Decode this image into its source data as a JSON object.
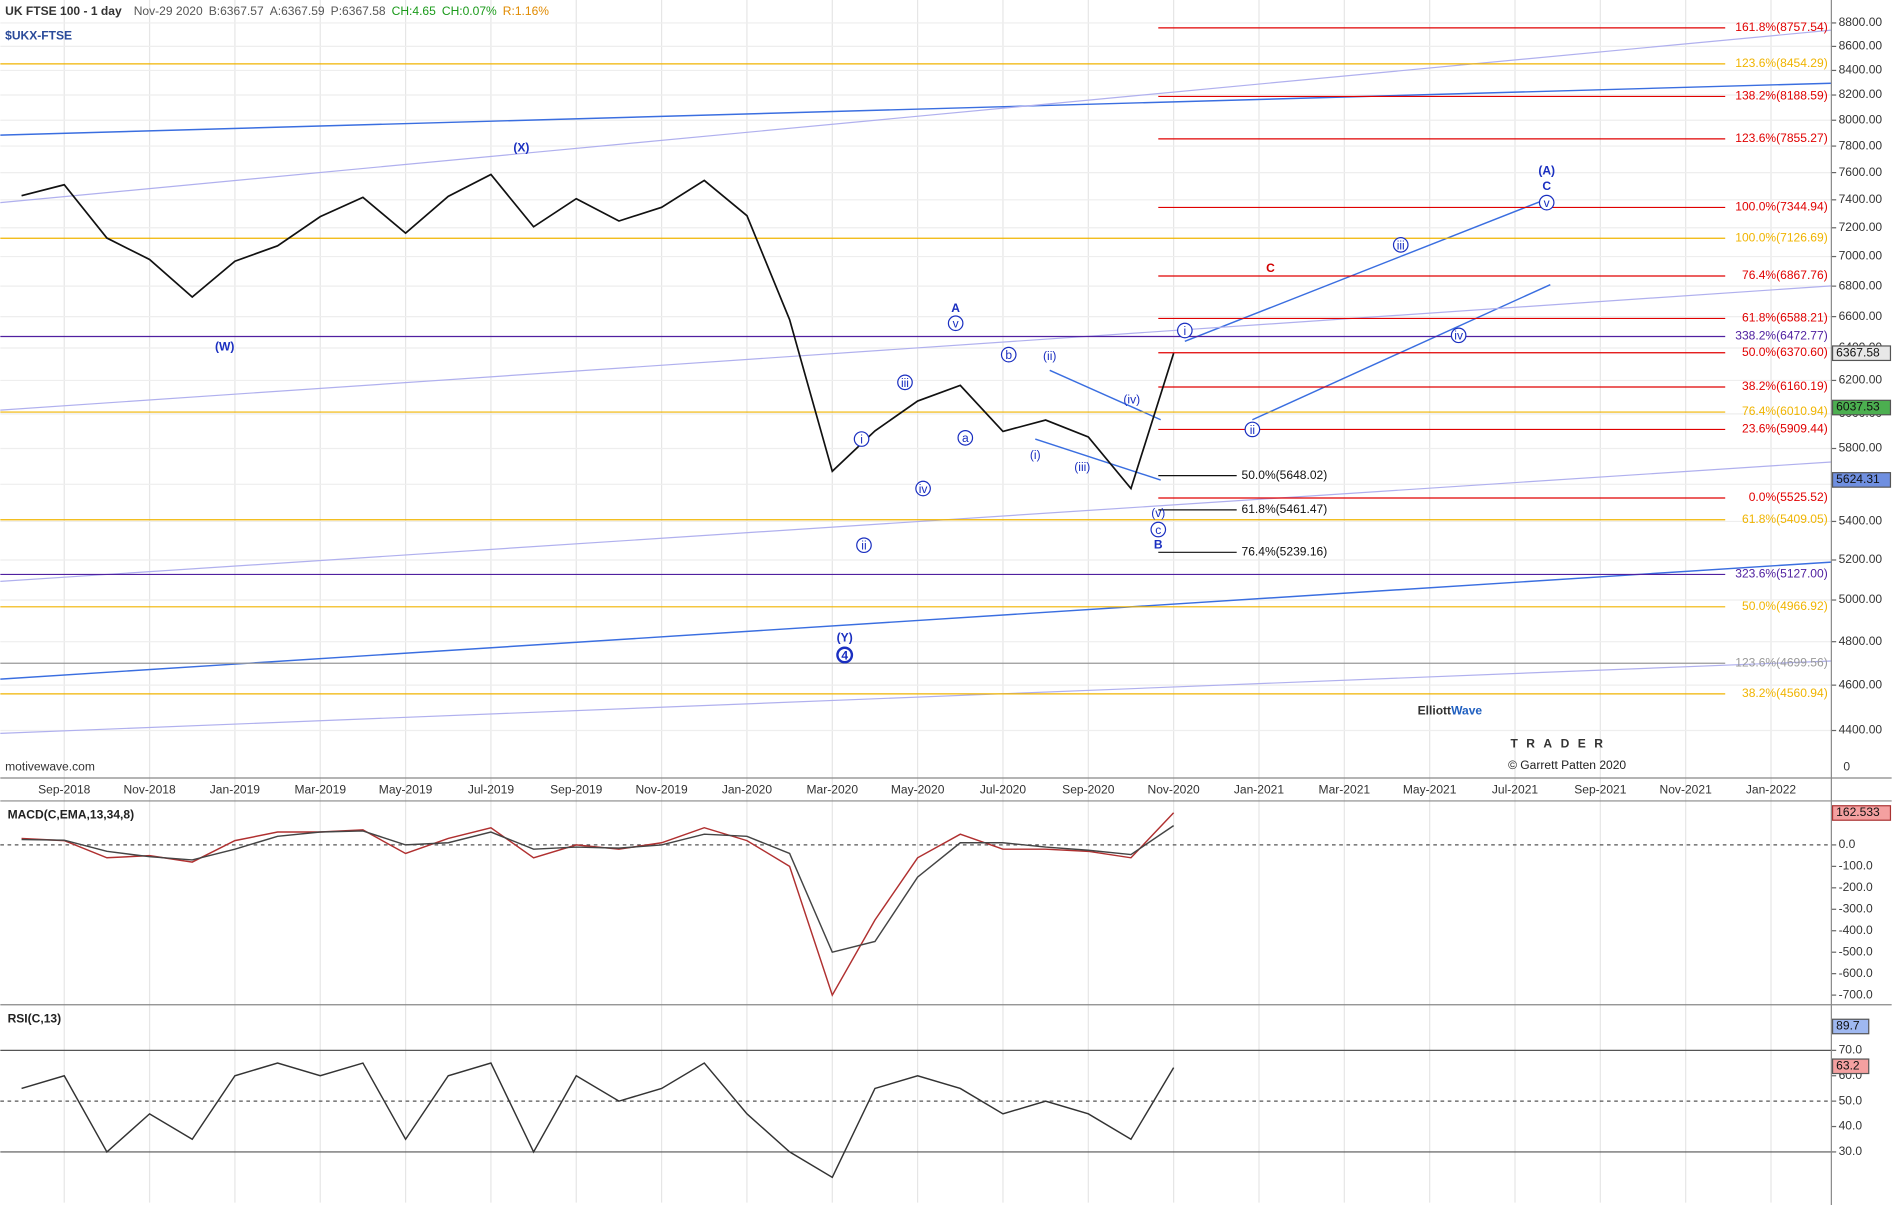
{
  "header": {
    "title": "UK FTSE 100 - 1 day",
    "date": "Nov-29 2020",
    "bid": "B:6367.57",
    "ask": "A:6367.59",
    "price": "P:6367.58",
    "change": "CH:4.65",
    "change_pct": "CH:0.07%",
    "range": "R:1.16%",
    "symbol": "$UKX-FTSE"
  },
  "chart_data": [
    {
      "type": "line",
      "color": "#111111",
      "log": true,
      "grid": true,
      "x": [
        "Aug-2018",
        "Sep-2018",
        "Oct-2018",
        "Nov-2018",
        "Dec-2018",
        "Jan-2019",
        "Feb-2019",
        "Mar-2019",
        "Apr-2019",
        "May-2019",
        "Jun-2019",
        "Jul-2019",
        "Aug-2019",
        "Sep-2019",
        "Oct-2019",
        "Nov-2019",
        "Dec-2019",
        "Jan-2020",
        "Feb-2020",
        "Mar-2020",
        "Apr-2020",
        "May-2020",
        "Jun-2020",
        "Jul-2020",
        "Aug-2020",
        "Sep-2020",
        "Oct-2020",
        "Nov-2020"
      ],
      "values": [
        7430,
        7510,
        7128,
        6980,
        6728,
        6968,
        7074,
        7279,
        7418,
        7162,
        7425,
        7586,
        7207,
        7408,
        7248,
        7346,
        7542,
        7286,
        6580,
        5672,
        5901,
        6076,
        6170,
        5898,
        5964,
        5866,
        5577,
        6367
      ],
      "xticks": [
        "Sep-2018",
        "Nov-2018",
        "Jan-2019",
        "Mar-2019",
        "May-2019",
        "Jul-2019",
        "Sep-2019",
        "Nov-2019",
        "Jan-2020",
        "Mar-2020",
        "May-2020",
        "Jul-2020",
        "Sep-2020",
        "Nov-2020",
        "Jan-2021",
        "Mar-2021",
        "May-2021",
        "Jul-2021",
        "Sep-2021",
        "Nov-2021",
        "Jan-2022"
      ],
      "ylim": [
        4200,
        9000
      ],
      "yticks": [
        {
          "value": 4400,
          "label": "4400.00"
        },
        {
          "value": 4600,
          "label": "4600.00"
        },
        {
          "value": 4800,
          "label": "4800.00"
        },
        {
          "value": 5000,
          "label": "5000.00"
        },
        {
          "value": 5200,
          "label": "5200.00"
        },
        {
          "value": 5400,
          "label": "5400.00"
        },
        {
          "value": 5600,
          "label": "5600.00"
        },
        {
          "value": 5800,
          "label": "5800.00"
        },
        {
          "value": 6000,
          "label": "6000.00"
        },
        {
          "value": 6200,
          "label": "6200.00"
        },
        {
          "value": 6400,
          "label": "6400.00"
        },
        {
          "value": 6600,
          "label": "6600.00"
        },
        {
          "value": 6800,
          "label": "6800.00"
        },
        {
          "value": 7000,
          "label": "7000.00"
        },
        {
          "value": 7200,
          "label": "7200.00"
        },
        {
          "value": 7400,
          "label": "7400.00"
        },
        {
          "value": 7600,
          "label": "7600.00"
        },
        {
          "value": 7800,
          "label": "7800.00"
        },
        {
          "value": 8000,
          "label": "8000.00"
        },
        {
          "value": 8200,
          "label": "8200.00"
        },
        {
          "value": 8400,
          "label": "8400.00"
        },
        {
          "value": 8600,
          "label": "8600.00"
        },
        {
          "value": 8800,
          "label": "8800.00"
        }
      ],
      "axis_extra": "0",
      "price_tags": [
        {
          "value": 6367.58,
          "label": "6367.58",
          "color": "#e8e8e8"
        },
        {
          "value": 6037.53,
          "label": "6037.53",
          "color": "#4caf50"
        },
        {
          "value": 5624.31,
          "label": "5624.31",
          "color": "#6f8fe0"
        }
      ],
      "projection_levels": {
        "color": "#e00000",
        "levels": [
          {
            "value": 8757.54,
            "label": "161.8%(8757.54)"
          },
          {
            "value": 8188.59,
            "label": "138.2%(8188.59)"
          },
          {
            "value": 7855.27,
            "label": "123.6%(7855.27)"
          },
          {
            "value": 7344.94,
            "label": "100.0%(7344.94)"
          },
          {
            "value": 6867.76,
            "label": "76.4%(6867.76)"
          },
          {
            "value": 6588.21,
            "label": "61.8%(6588.21)"
          },
          {
            "value": 6370.6,
            "label": "50.0%(6370.60)"
          },
          {
            "value": 6160.19,
            "label": "38.2%(6160.19)"
          },
          {
            "value": 5909.44,
            "label": "23.6%(5909.44)"
          },
          {
            "value": 5525.52,
            "label": "0.0%(5525.52)"
          }
        ]
      },
      "retracement_levels": {
        "color": "#f0b400",
        "levels": [
          {
            "value": 8454.29,
            "label": "123.6%(8454.29)"
          },
          {
            "value": 7126.69,
            "label": "100.0%(7126.69)"
          },
          {
            "value": 6010.94,
            "label": "76.4%(6010.94)"
          },
          {
            "value": 5409.05,
            "label": "61.8%(5409.05)"
          },
          {
            "value": 4966.92,
            "label": "50.0%(4966.92)"
          },
          {
            "value": 4560.94,
            "label": "38.2%(4560.94)"
          }
        ]
      },
      "channel_levels": {
        "color": "#5020a0",
        "levels": [
          {
            "value": 6472.77,
            "label": "338.2%(6472.77)"
          },
          {
            "value": 5127.0,
            "label": "323.6%(5127.00)"
          }
        ]
      },
      "extension_levels": {
        "color": "#999999",
        "levels": [
          {
            "value": 4699.56,
            "label": "123.6%(4699.56)"
          }
        ]
      },
      "support_levels": {
        "color": "#111111",
        "levels": [
          {
            "value": 5648.02,
            "label": "50.0%(5648.02)"
          },
          {
            "value": 5461.47,
            "label": "61.8%(5461.47)"
          },
          {
            "value": 5239.16,
            "label": "76.4%(5239.16)"
          }
        ]
      },
      "wave_labels": [
        "(X)",
        "(W)",
        "A",
        "v",
        "iii",
        "i",
        "iv",
        "ii",
        "a",
        "b",
        "(ii)",
        "(i)",
        "(iii)",
        "(iv)",
        "(v)",
        "c",
        "B",
        "(Y)",
        "4",
        "i",
        "C",
        "(A)",
        "C",
        "v",
        "iii",
        "iv",
        "ii"
      ]
    },
    {
      "type": "macd",
      "title": "MACD(C,EMA,13,34,8)",
      "ylim": [
        -745,
        205
      ],
      "yticks": [
        {
          "value": -700,
          "label": "-700.0"
        },
        {
          "value": -600,
          "label": "-600.0"
        },
        {
          "value": -500,
          "label": "-500.0"
        },
        {
          "value": -400,
          "label": "-400.0"
        },
        {
          "value": -300,
          "label": "-300.0"
        },
        {
          "value": -200,
          "label": "-200.0"
        },
        {
          "value": -100,
          "label": "-100.0"
        },
        {
          "value": 0,
          "label": "0.0"
        }
      ],
      "series": [
        {
          "name": "MACD",
          "color": "#b03030",
          "values": [
            30,
            20,
            -60,
            -50,
            -80,
            20,
            60,
            60,
            70,
            -40,
            30,
            80,
            -60,
            0,
            -20,
            10,
            80,
            20,
            -100,
            -700,
            -350,
            -60,
            50,
            -20,
            -20,
            -30,
            -60,
            150
          ]
        },
        {
          "name": "Signal",
          "color": "#444444",
          "values": [
            25,
            22,
            -30,
            -55,
            -70,
            -20,
            40,
            60,
            65,
            0,
            10,
            60,
            -20,
            -10,
            -15,
            0,
            50,
            40,
            -40,
            -500,
            -450,
            -150,
            10,
            10,
            -10,
            -25,
            -45,
            90
          ]
        }
      ],
      "tag": {
        "value": 162.533,
        "label": "162.533"
      }
    },
    {
      "type": "rsi",
      "title": "RSI(C,13)",
      "ylim": [
        11,
        87
      ],
      "yticks": [
        {
          "value": 30,
          "label": "30.0"
        },
        {
          "value": 40,
          "label": "40.0"
        },
        {
          "value": 50,
          "label": "50.0"
        },
        {
          "value": 60,
          "label": "60.0"
        },
        {
          "value": 70,
          "label": "70.0"
        }
      ],
      "values": [
        55,
        60,
        30,
        45,
        35,
        60,
        65,
        60,
        65,
        35,
        60,
        65,
        30,
        60,
        50,
        55,
        65,
        45,
        30,
        20,
        55,
        60,
        55,
        45,
        50,
        45,
        35,
        63.2
      ],
      "color": "#333333",
      "tags": [
        {
          "value": 89.7,
          "label": "89.7"
        },
        {
          "value": 63.2,
          "label": "63.2"
        }
      ]
    }
  ],
  "footer": {
    "source": "motivewave.com",
    "logo_left": "Elliott",
    "logo_right": "Wave",
    "logo_bottom": "TRADER",
    "copyright": "© Garrett Patten 2020"
  }
}
